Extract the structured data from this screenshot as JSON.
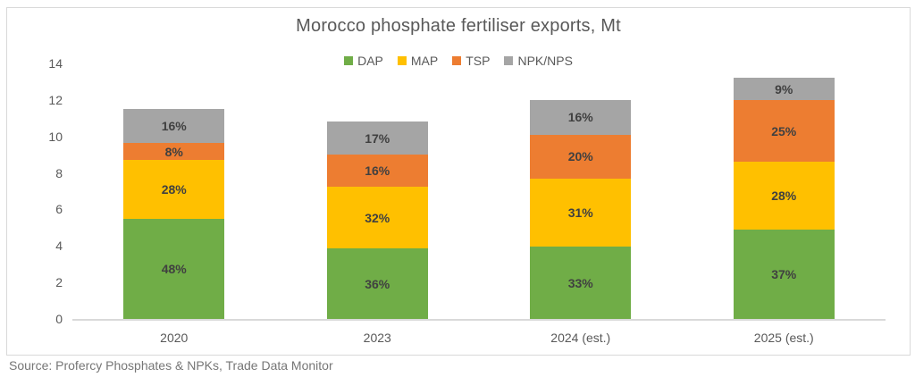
{
  "chart_data": {
    "type": "bar",
    "subtype": "stacked-bar",
    "title": "Morocco phosphate fertiliser exports, Mt",
    "categories": [
      "2020",
      "2023",
      "2024 (est.)",
      "2025 (est.)"
    ],
    "series": [
      {
        "name": "DAP",
        "color": "#70AD47",
        "values": [
          5.5,
          3.85,
          3.95,
          4.9
        ],
        "labels": [
          "48%",
          "36%",
          "33%",
          "37%"
        ]
      },
      {
        "name": "MAP",
        "color": "#FFC000",
        "values": [
          3.2,
          3.4,
          3.75,
          3.7
        ],
        "labels": [
          "28%",
          "32%",
          "31%",
          "28%"
        ]
      },
      {
        "name": "TSP",
        "color": "#ED7D31",
        "values": [
          0.95,
          1.75,
          2.4,
          3.4
        ],
        "labels": [
          "8%",
          "16%",
          "20%",
          "25%"
        ]
      },
      {
        "name": "NPK/NPS",
        "color": "#A5A5A5",
        "values": [
          1.85,
          1.8,
          1.9,
          1.2
        ],
        "labels": [
          "16%",
          "17%",
          "16%",
          "9%"
        ]
      }
    ],
    "totals": [
      11.5,
      10.8,
      12.0,
      13.2
    ],
    "xlabel": "",
    "ylabel": "",
    "ylim": [
      0,
      14
    ],
    "yticks": [
      0,
      2,
      4,
      6,
      8,
      10,
      12,
      14
    ],
    "grid": false,
    "legend_position": "top-center"
  },
  "source": "Source: Profercy Phosphates & NPKs, Trade Data Monitor",
  "colors": {
    "segment_label": "#404040",
    "axis_text": "#595959",
    "title_text": "#595959",
    "axis_line": "#D9D9D9",
    "frame_border": "#D9D9D9",
    "source_text": "#767676"
  }
}
